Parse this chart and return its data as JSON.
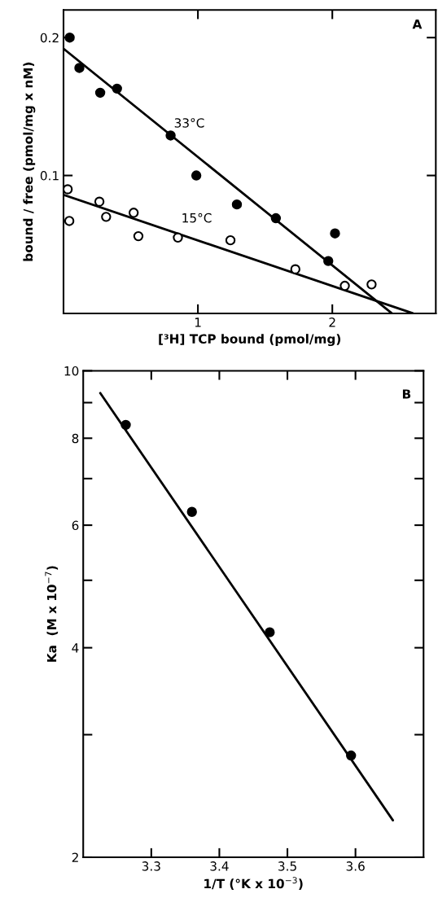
{
  "chart_data": [
    {
      "type": "scatter",
      "xlabel": "[³H] TCP bound (pmol/mg)",
      "ylabel": "bound / free (pmol/mg x nM)",
      "xlim": [
        0,
        2.77
      ],
      "ylim": [
        0,
        0.22
      ],
      "xticks": [
        1,
        2
      ],
      "yticks": [
        0.1,
        0.2
      ],
      "grid": false,
      "series": [
        {
          "marker": "circle",
          "color": "#000000",
          "x": [
            0.046,
            0.118,
            0.273,
            0.398,
            0.797,
            0.988,
            1.29,
            1.58,
            2.02,
            1.97
          ],
          "values": [
            0.2,
            0.178,
            0.16,
            0.163,
            0.129,
            0.1,
            0.079,
            0.069,
            0.058,
            0.038
          ]
        },
        {
          "marker": "circle",
          "color": "#ffffff",
          "x": [
            0.031,
            0.043,
            0.267,
            0.317,
            0.522,
            0.557,
            0.851,
            1.242,
            1.725,
            2.093,
            2.292
          ],
          "values": [
            0.09,
            0.067,
            0.081,
            0.07,
            0.073,
            0.056,
            0.055,
            0.053,
            0.032,
            0.02,
            0.021
          ]
        },
        {
          "type": "line",
          "marker": "none",
          "name": "33°C",
          "color": "#000000",
          "x": [
            0,
            2.443
          ],
          "values": [
            0.192,
            0
          ]
        },
        {
          "type": "line",
          "marker": "none",
          "name": "15°C",
          "color": "#000000",
          "x": [
            0,
            2.6
          ],
          "values": [
            0.086,
            0
          ]
        }
      ],
      "annotations": [
        "A"
      ]
    },
    {
      "type": "scatter",
      "xlabel": "1/T (°K x 10$^{−3}$)",
      "ylabel": "Ka  (M x 10$^{−7}$)",
      "log": "y",
      "xlim": [
        3.2,
        3.7
      ],
      "ylim": [
        2,
        10
      ],
      "xticks": [
        3.3,
        3.4,
        3.5,
        3.6
      ],
      "yticks": [
        2,
        {
          "value": 3,
          "label": null
        },
        4,
        {
          "value": 5,
          "label": null
        },
        6,
        {
          "value": 7,
          "label": null
        },
        8,
        {
          "value": 9,
          "label": null
        },
        10
      ],
      "grid": false,
      "series": [
        {
          "marker": "circle",
          "color": "#000000",
          "x": [
            3.2625,
            3.3597,
            3.474,
            3.5935
          ],
          "values": [
            8.36,
            6.27,
            4.21,
            2.8
          ]
        },
        {
          "type": "line",
          "marker": "none",
          "color": "#000000",
          "x": [
            3.225,
            3.655
          ],
          "values": [
            9.29,
            2.26
          ]
        }
      ],
      "annotations": [
        "B"
      ]
    }
  ]
}
